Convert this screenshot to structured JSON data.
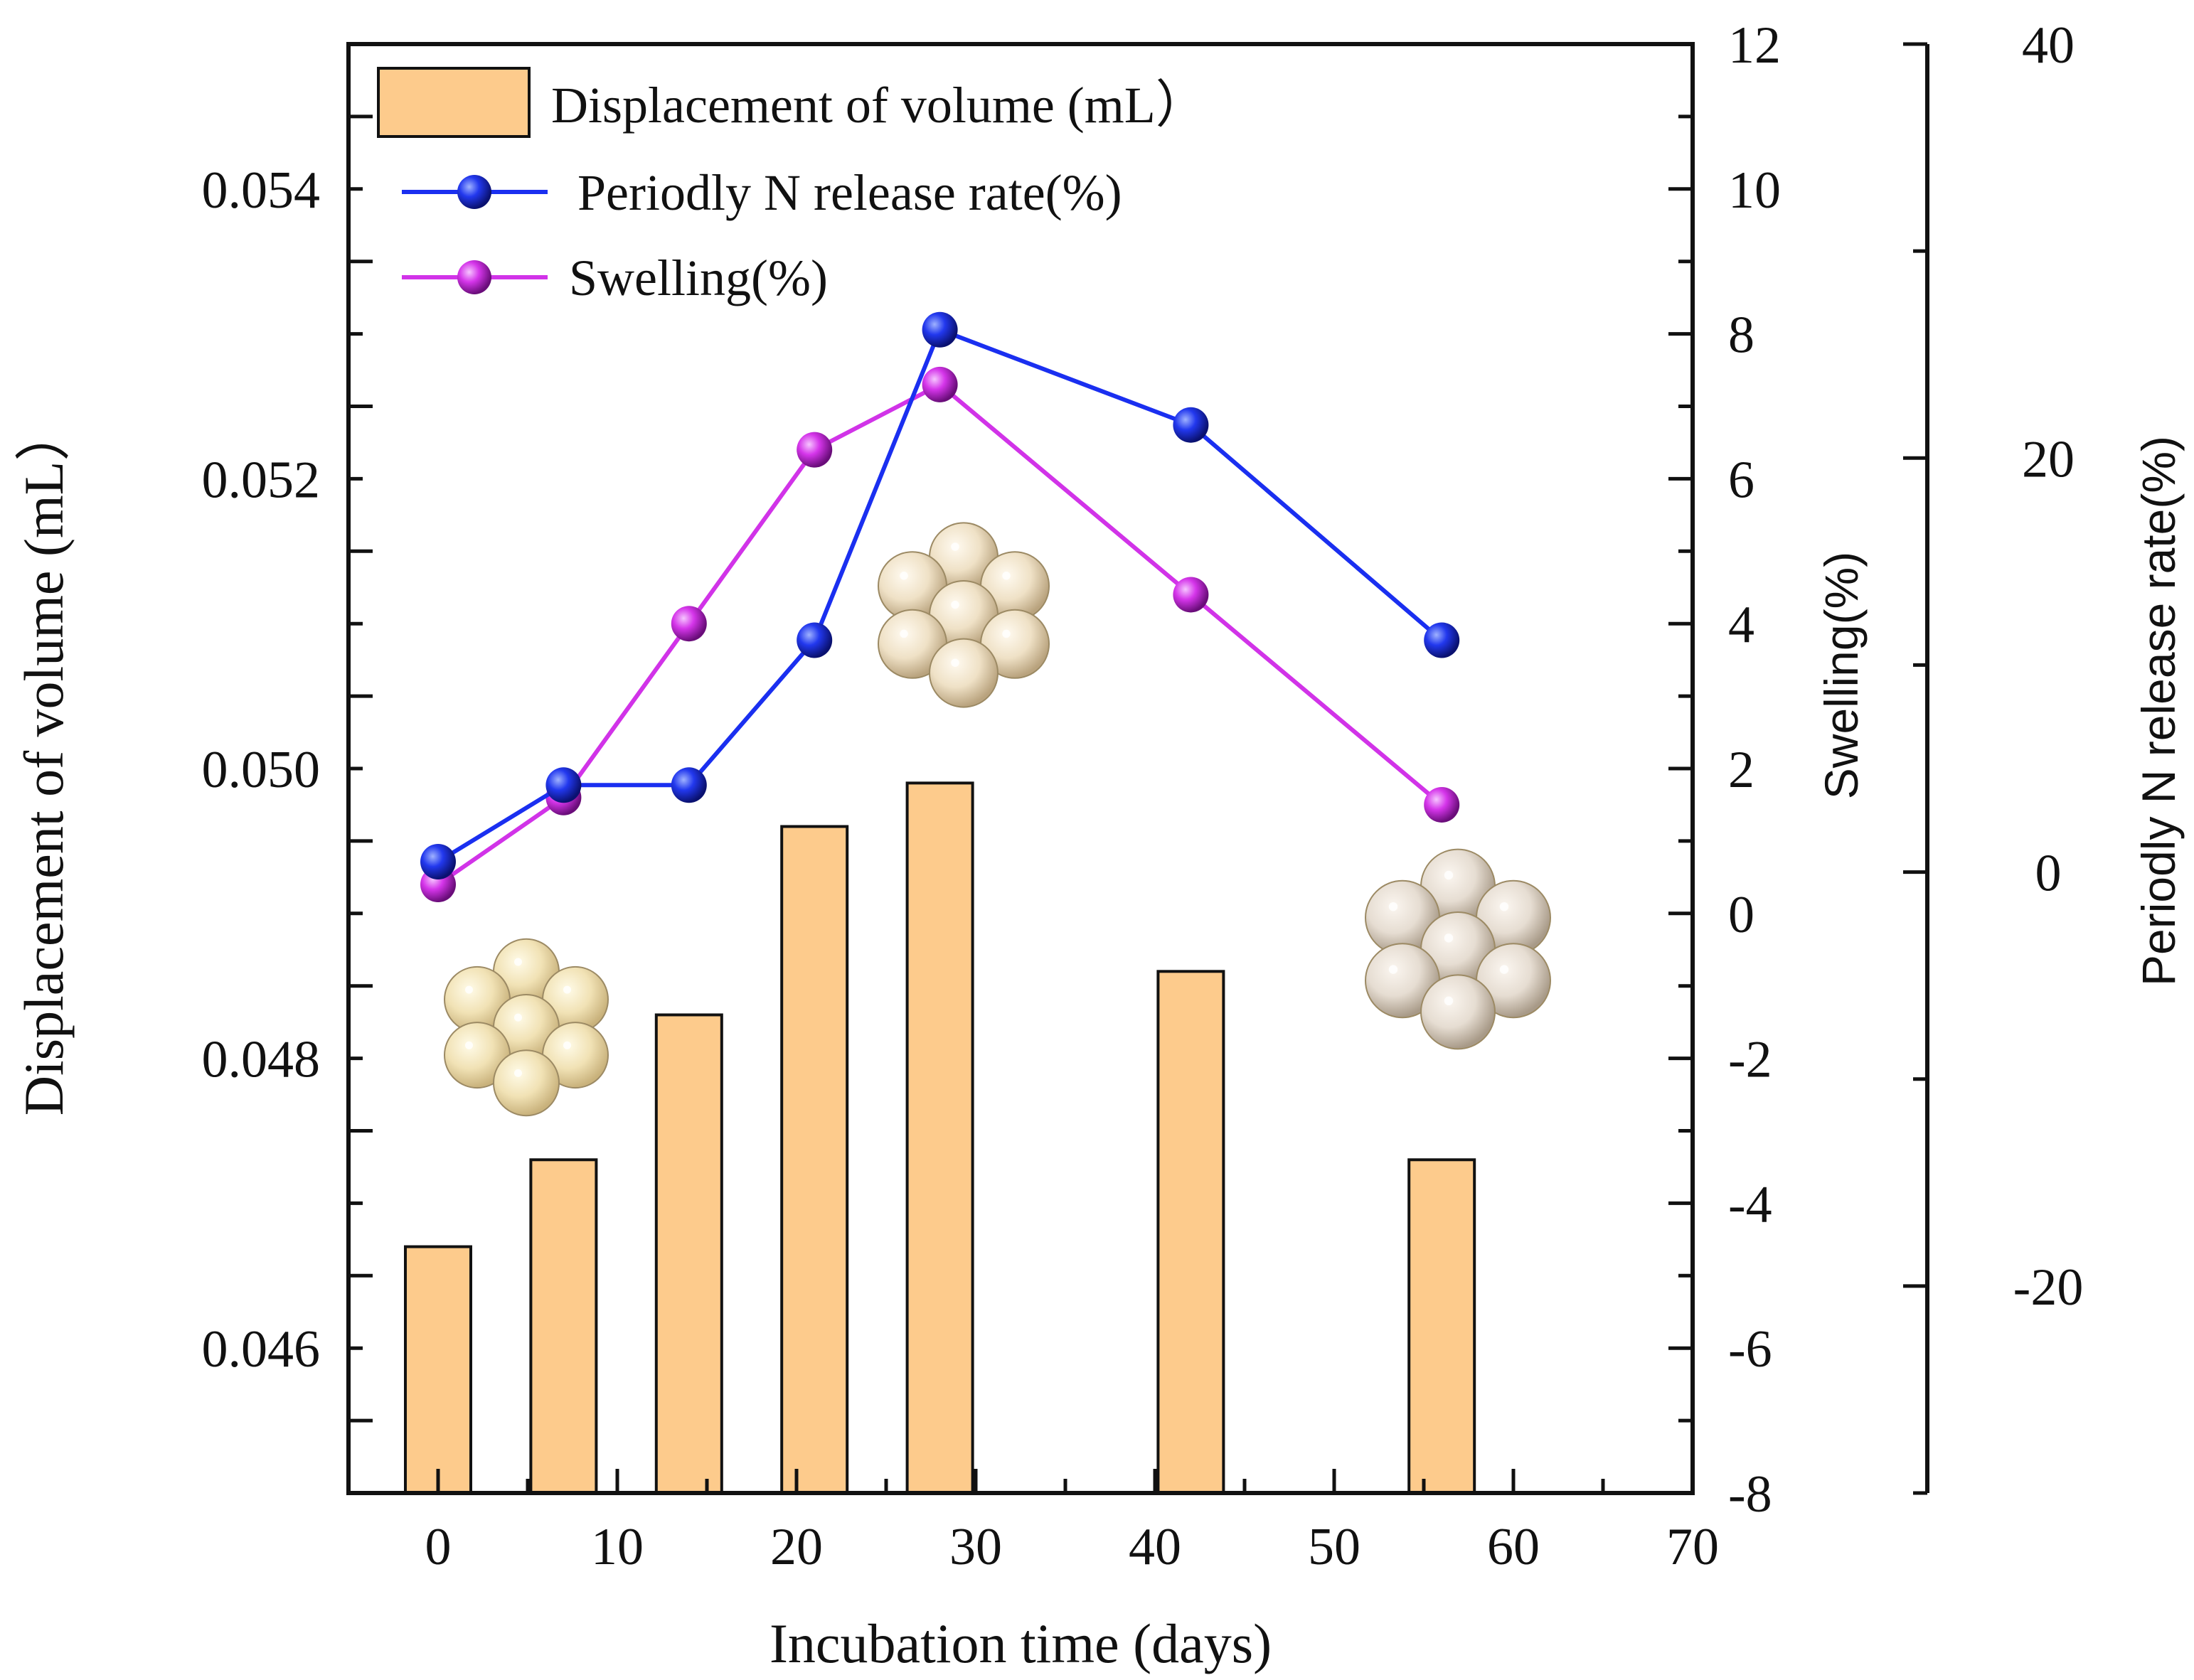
{
  "chart_data": {
    "type": "bar+line",
    "title": "",
    "xlabel": "Incubation time (days)",
    "xlim": [
      -5,
      70
    ],
    "xticks": [
      0,
      10,
      20,
      30,
      40,
      50,
      60,
      70
    ],
    "axes": {
      "left": {
        "label": "Displacement of volume (mL）",
        "lim": [
          0.045,
          0.055
        ],
        "ticks": [
          "0.046",
          "0.048",
          "0.050",
          "0.052",
          "0.054"
        ]
      },
      "right1": {
        "label": "Swelling(%)",
        "lim": [
          -8,
          12
        ],
        "ticks": [
          "-8",
          "-6",
          "-4",
          "-2",
          "0",
          "2",
          "4",
          "6",
          "8",
          "10",
          "12"
        ]
      },
      "right2": {
        "label": "Periodly N release rate(%)",
        "lim": [
          -30,
          40
        ],
        "ticks": [
          "-20",
          "0",
          "20",
          "40"
        ]
      }
    },
    "bars": {
      "name": "Displacement of volume (mL）",
      "axis": "left",
      "color": "#FDCB8C",
      "x": [
        0,
        7,
        14,
        21,
        28,
        42,
        56
      ],
      "values": [
        0.0467,
        0.0473,
        0.0483,
        0.0496,
        0.0499,
        0.0486,
        0.0473
      ]
    },
    "series": [
      {
        "name": "Periodly N release rate(%)",
        "axis": "right2",
        "color": "#1A2FF0",
        "x": [
          0,
          7,
          14,
          21,
          28,
          42,
          56
        ],
        "values": [
          0.5,
          4.2,
          4.2,
          11.2,
          26.2,
          21.6,
          11.2
        ]
      },
      {
        "name": "Swelling(%)",
        "axis": "right1",
        "color": "#D133E8",
        "x": [
          0,
          7,
          14,
          21,
          28,
          42,
          56
        ],
        "values": [
          0.4,
          1.6,
          4.0,
          6.4,
          7.3,
          4.4,
          1.5
        ]
      }
    ],
    "legend_position": "top-left",
    "grid": false
  }
}
